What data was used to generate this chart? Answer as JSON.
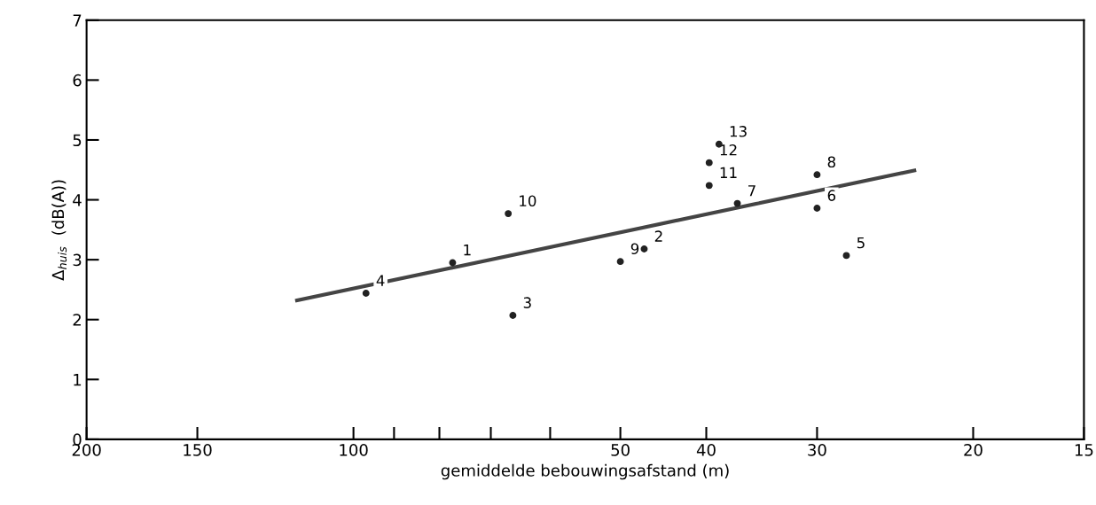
{
  "chart_data": {
    "type": "scatter",
    "xlabel": "gemiddelde bebouwingsafstand (m)",
    "ylabel": "Δ$_{huis}$  (dB(A))",
    "log": "x",
    "grid": false,
    "xlim": [
      200,
      15
    ],
    "xticks": [
      200,
      150,
      100,
      {
        "value": 90,
        "label": null
      },
      {
        "value": 80,
        "label": null
      },
      {
        "value": 70,
        "label": null
      },
      {
        "value": 60,
        "label": null
      },
      50,
      40,
      30,
      20,
      15
    ],
    "ylim": [
      0,
      7
    ],
    "yticks": [
      0,
      1,
      2,
      3,
      4,
      5,
      6,
      7
    ],
    "series": [
      {
        "color": "#222222",
        "marker": "circle",
        "x": [
          77.3,
          47.0,
          66.1,
          96.8,
          27.8,
          30,
          36.9,
          30,
          50,
          66.9,
          39.7,
          39.7,
          38.7
        ],
        "values": [
          2.95,
          3.18,
          2.07,
          2.44,
          3.07,
          3.86,
          3.94,
          4.42,
          2.97,
          3.77,
          4.24,
          4.62,
          4.93
        ]
      },
      {
        "type": "line",
        "color": "#444444",
        "marker": "none",
        "line_style": "solid",
        "x": [
          115.8,
          23.3
        ],
        "values": [
          2.32,
          4.49
        ]
      }
    ],
    "annotations": [
      {
        "text": "1",
        "x": 77.3,
        "y": 2.95
      },
      {
        "text": "2",
        "x": 47.0,
        "y": 3.18
      },
      {
        "text": "3",
        "x": 66.1,
        "y": 2.07
      },
      {
        "text": "4",
        "x": 96.8,
        "y": 2.44
      },
      {
        "text": "5",
        "x": 27.8,
        "y": 3.07
      },
      {
        "text": "6",
        "x": 30,
        "y": 3.86
      },
      {
        "text": "7",
        "x": 36.9,
        "y": 3.94
      },
      {
        "text": "8",
        "x": 30,
        "y": 4.42
      },
      {
        "text": "9",
        "x": 50,
        "y": 2.97
      },
      {
        "text": "10",
        "x": 66.9,
        "y": 3.77
      },
      {
        "text": "11",
        "x": 39.7,
        "y": 4.24
      },
      {
        "text": "12",
        "x": 39.7,
        "y": 4.62
      },
      {
        "text": "13",
        "x": 38.7,
        "y": 4.93
      }
    ]
  }
}
